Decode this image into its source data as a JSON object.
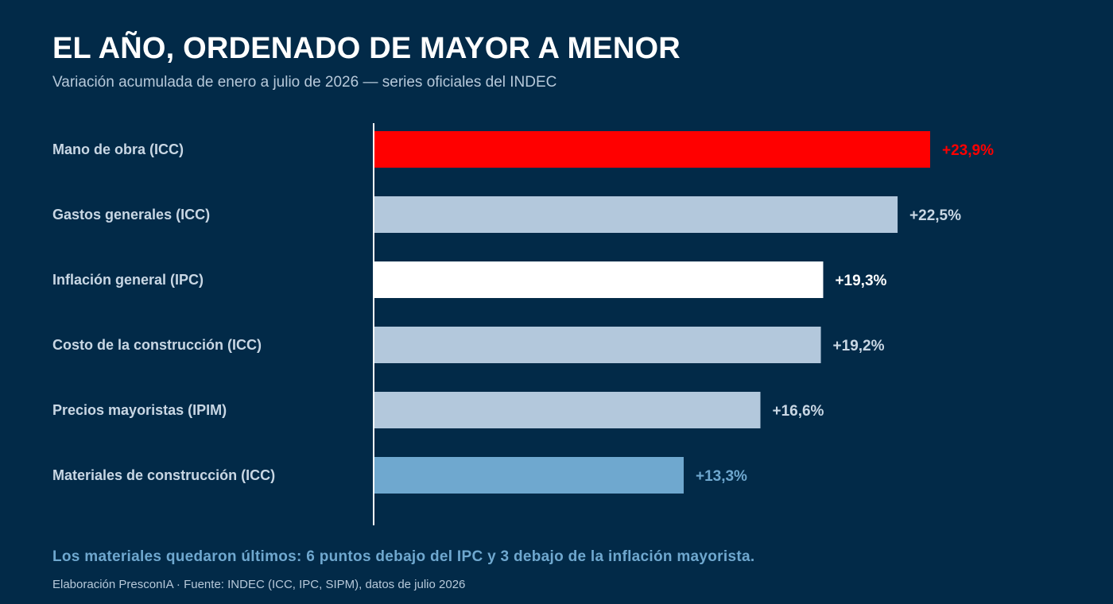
{
  "header": {
    "title": "EL AÑO, ORDENADO DE MAYOR A MENOR",
    "subtitle": "Variación acumulada de enero a julio de 2026 — series oficiales del INDEC"
  },
  "colors": {
    "background": "#022a48",
    "highlight": "#ff0000",
    "ipc": "#ffffff",
    "default": "#b3c8dc",
    "materials": "#6fa8cf",
    "axis": "#ffffff",
    "category_text": "#c9d7e4",
    "default_value_text": "#c9d7e4"
  },
  "chart_data": {
    "type": "bar",
    "orientation": "horizontal",
    "title": "EL AÑO, ORDENADO DE MAYOR A MENOR",
    "subtitle": "Variación acumulada de enero a julio de 2026 — series oficiales del INDEC",
    "xlabel": "",
    "ylabel": "",
    "xlim": [
      0,
      28
    ],
    "grid": false,
    "legend": "none",
    "categories": [
      "Mano de obra (ICC)",
      "Gastos generales (ICC)",
      "Inflación general (IPC)",
      "Costo de la construcción (ICC)",
      "Precios mayoristas (IPIM)",
      "Materiales de construcción (ICC)"
    ],
    "values": [
      23.9,
      22.5,
      19.3,
      19.2,
      16.6,
      13.3
    ],
    "value_labels": [
      "+23,9%",
      "+22,5%",
      "+19,3%",
      "+19,2%",
      "+16,6%",
      "+13,3%"
    ],
    "bar_colors": [
      "#ff0000",
      "#b3c8dc",
      "#ffffff",
      "#b3c8dc",
      "#b3c8dc",
      "#6fa8cf"
    ],
    "label_colors": [
      "#ff0000",
      "#c9d7e4",
      "#ffffff",
      "#c9d7e4",
      "#c9d7e4",
      "#6fa8cf"
    ]
  },
  "footer": {
    "note": "Los materiales quedaron últimos: 6 puntos debajo del IPC y 3 debajo de la inflación mayorista.",
    "source": "Elaboración PresconIA · Fuente: INDEC (ICC, IPC, SIPM), datos de julio 2026"
  }
}
